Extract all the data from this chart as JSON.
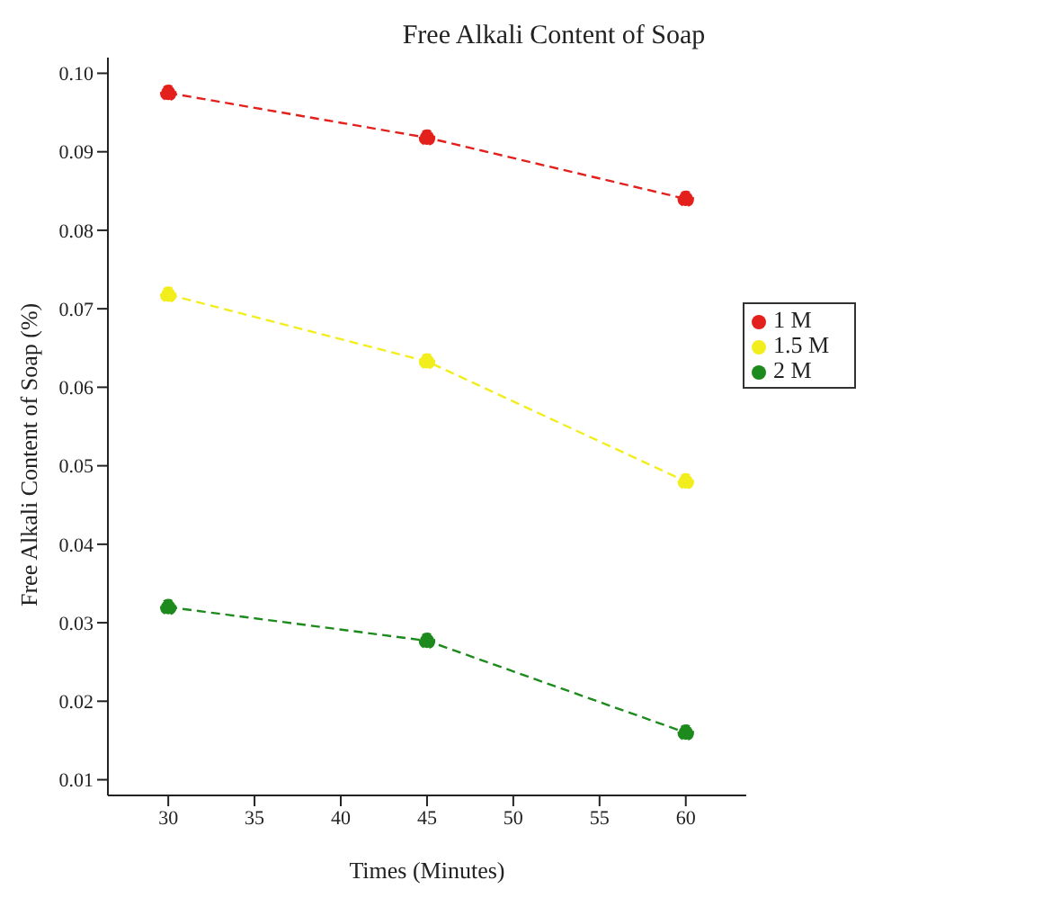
{
  "chart_data": {
    "type": "line",
    "title": "Free Alkali Content of Soap",
    "xlabel": "Times (Minutes)",
    "ylabel": "Free Alkali Content of Soap (%)",
    "x": [
      30,
      45,
      60
    ],
    "series": [
      {
        "name": "1 M",
        "color": "#e3201c",
        "values": [
          0.0975,
          0.0918,
          0.084
        ]
      },
      {
        "name": "1.5 M",
        "color": "#f2ee1e",
        "values": [
          0.0718,
          0.0633,
          0.048
        ]
      },
      {
        "name": "2 M",
        "color": "#1d8a1d",
        "values": [
          0.032,
          0.0277,
          0.016
        ]
      }
    ],
    "xlim": [
      26.5,
      63.5
    ],
    "xticks": [
      30,
      35,
      40,
      45,
      50,
      55,
      60
    ],
    "ylim": [
      0.008,
      0.102
    ],
    "yticks": [
      {
        "value": 0.01,
        "label": "0.01"
      },
      {
        "value": 0.02,
        "label": "0.02"
      },
      {
        "value": 0.03,
        "label": "0.03"
      },
      {
        "value": 0.04,
        "label": "0.04"
      },
      {
        "value": 0.05,
        "label": "0.05"
      },
      {
        "value": 0.06,
        "label": "0.06"
      },
      {
        "value": 0.07,
        "label": "0.07"
      },
      {
        "value": 0.08,
        "label": "0.08"
      },
      {
        "value": 0.09,
        "label": "0.09"
      },
      {
        "value": 0.1,
        "label": "0.10"
      }
    ],
    "legend": "right",
    "marker": "circle",
    "line_style": "dashed",
    "grid": false
  }
}
